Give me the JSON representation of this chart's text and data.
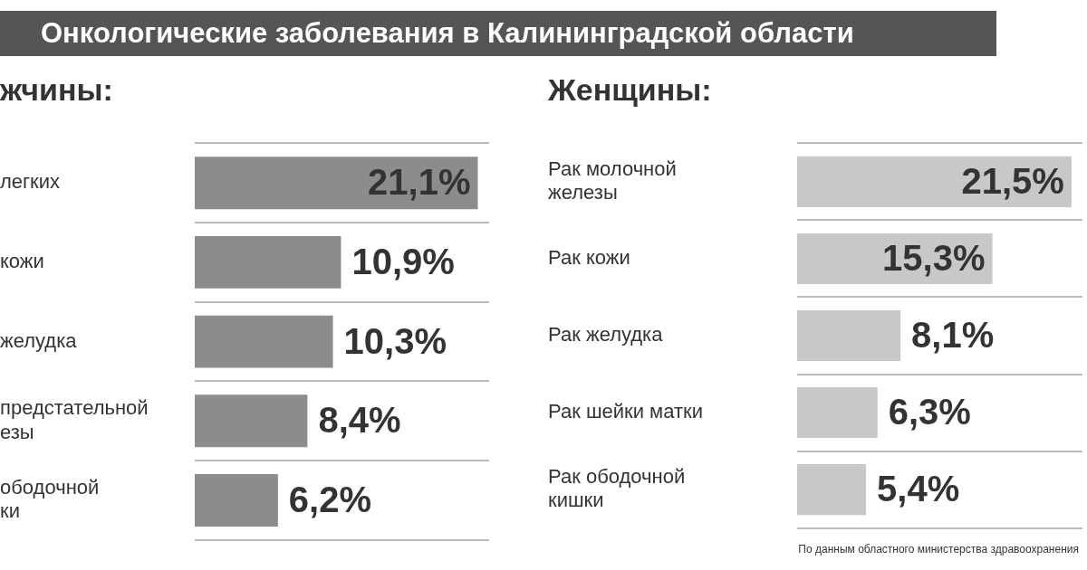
{
  "chart_data": [
    {
      "type": "bar",
      "orientation": "horizontal",
      "title": "Онкологические заболевания в Калининградской области",
      "subtitle": "жчины:",
      "categories": [
        "легких",
        "кожи",
        "желудка",
        "предстательной езы",
        "ободочной ки"
      ],
      "values": [
        21.1,
        10.9,
        10.3,
        8.4,
        6.2
      ],
      "value_labels": [
        "21,1%",
        "10,9%",
        "10,3%",
        "8,4%",
        "6,2%"
      ],
      "color": "#8c8c8c",
      "grid": "y"
    },
    {
      "type": "bar",
      "orientation": "horizontal",
      "subtitle": "Женщины:",
      "categories": [
        "Рак молочной железы",
        "Рак кожи",
        "Рак желудка",
        "Рак шейки матки",
        "Рак ободочной кишки"
      ],
      "values": [
        21.5,
        15.3,
        8.1,
        6.3,
        5.4
      ],
      "value_labels": [
        "21,5%",
        "15,3%",
        "8,1%",
        "6,3%",
        "5,4%"
      ],
      "color": "#c8c8c8",
      "grid": "y",
      "annotations": [
        "По данным областного министерства здравоохранения"
      ]
    }
  ]
}
